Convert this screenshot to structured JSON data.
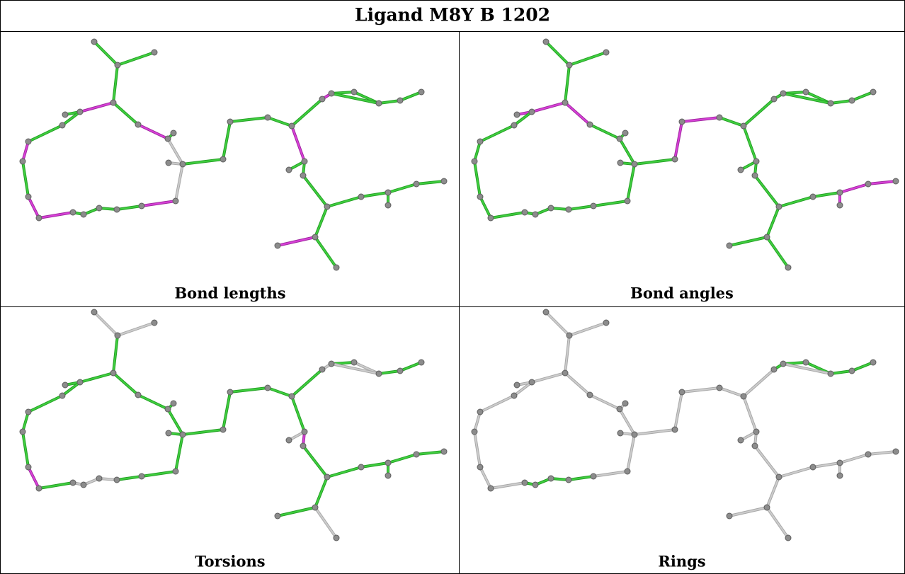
{
  "title": "Ligand M8Y B 1202",
  "panels": [
    {
      "caption": "Bond lengths"
    },
    {
      "caption": "Bond angles"
    },
    {
      "caption": "Torsions"
    },
    {
      "caption": "Rings"
    }
  ]
}
